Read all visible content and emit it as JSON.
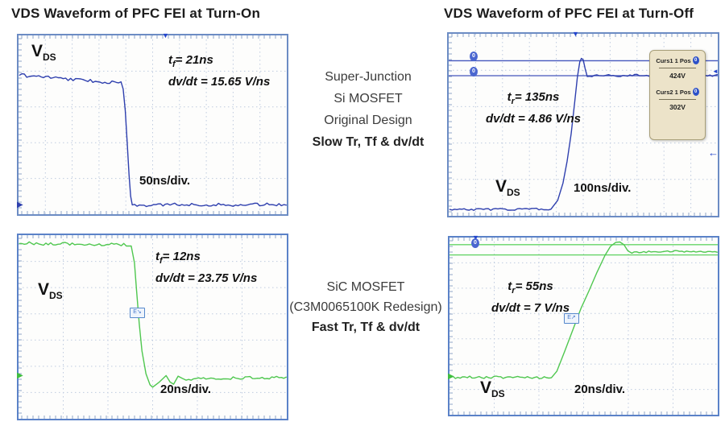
{
  "titles": {
    "left": "VDS Waveform of PFC FEI at Turn-On",
    "right": "VDS Waveform of PFC FEI at Turn-Off"
  },
  "middle_labels": {
    "top": {
      "lines": [
        "Super-Junction",
        "Si MOSFET",
        "Original Design"
      ],
      "bold_line": "Slow Tr, Tf & dv/dt"
    },
    "bottom": {
      "lines": [
        "SiC MOSFET",
        "(C3M0065100K Redesign)"
      ],
      "bold_line": "Fast Tr, Tf & dv/dt"
    }
  },
  "icons": {
    "trigger": "▼",
    "zero": "0",
    "edge_arrow": "▶",
    "arrow_left": "←",
    "arrow_small": "◄"
  },
  "colors": {
    "blue_trace": "#2e3fae",
    "green_trace": "#4fc74f",
    "blue_cursor": "#4456bd",
    "green_cursor": "#66d467",
    "grid": "#bfcbdf",
    "scope_border": "#6c8cc4",
    "panel_bg": "#ece3c9"
  },
  "chart_data": [
    {
      "name": "si-mosfet-turn-on",
      "type": "line",
      "device": "Super-Junction Si MOSFET (Original Design)",
      "edge": "turn-on",
      "vds": {
        "v": "V",
        "sub": "DS"
      },
      "annotation": {
        "t": "t",
        "t_sub": "f",
        "t_rest": "= 21ns",
        "dvdt": "dv/dt = 15.65 V/ns"
      },
      "measurements": {
        "t_f_ns": 21,
        "dvdt_V_per_ns": 15.65
      },
      "timebase": "50ns/div.",
      "grid": {
        "cols": 10,
        "rows": 5
      },
      "cursor_lines": [],
      "trace": {
        "color": "#2e3fae",
        "segments": [
          {
            "noisy": true,
            "amp": 0.009,
            "points": [
              [
                0.004,
                0.222
              ],
              [
                0.12,
                0.235
              ],
              [
                0.25,
                0.252
              ],
              [
                0.34,
                0.262
              ],
              [
                0.382,
                0.268
              ]
            ]
          },
          {
            "noisy": false,
            "points": [
              [
                0.382,
                0.268
              ],
              [
                0.39,
                0.3
              ],
              [
                0.398,
                0.42
              ],
              [
                0.405,
                0.6
              ],
              [
                0.412,
                0.78
              ],
              [
                0.418,
                0.9
              ],
              [
                0.424,
                0.948
              ]
            ]
          },
          {
            "noisy": true,
            "amp": 0.008,
            "points": [
              [
                0.424,
                0.952
              ],
              [
                0.6,
                0.945
              ],
              [
                0.8,
                0.948
              ],
              [
                0.998,
                0.944
              ]
            ]
          }
        ]
      }
    },
    {
      "name": "si-mosfet-turn-off",
      "type": "line",
      "device": "Super-Junction Si MOSFET (Original Design)",
      "edge": "turn-off",
      "vds": {
        "v": "V",
        "sub": "DS"
      },
      "annotation": {
        "t": "t",
        "t_sub": "r",
        "t_rest": "= 135ns",
        "dvdt": "dv/dt = 4.86 V/ns"
      },
      "measurements": {
        "t_r_ns": 135,
        "dvdt_V_per_ns": 4.86
      },
      "timebase": "100ns/div.",
      "grid": {
        "cols": 10,
        "rows": 5
      },
      "cursor_lines": [
        {
          "y": 0.148,
          "color": "#4456bd"
        },
        {
          "y": 0.23,
          "color": "#4456bd"
        }
      ],
      "panel": {
        "rows": [
          {
            "label": "Curs1 1 Pos",
            "value": "424V"
          },
          {
            "label": "Curs2 1 Pos",
            "value": "302V"
          }
        ]
      },
      "trace": {
        "color": "#2e3fae",
        "segments": [
          {
            "noisy": true,
            "amp": 0.006,
            "points": [
              [
                0.004,
                0.965
              ],
              [
                0.38,
                0.963
              ]
            ]
          },
          {
            "noisy": false,
            "points": [
              [
                0.38,
                0.963
              ],
              [
                0.405,
                0.915
              ],
              [
                0.425,
                0.82
              ],
              [
                0.44,
                0.7
              ],
              [
                0.455,
                0.55
              ],
              [
                0.468,
                0.38
              ],
              [
                0.478,
                0.24
              ],
              [
                0.487,
                0.155
              ],
              [
                0.493,
                0.135
              ],
              [
                0.5,
                0.143
              ],
              [
                0.507,
                0.19
              ],
              [
                0.515,
                0.235
              ]
            ]
          },
          {
            "noisy": true,
            "amp": 0.006,
            "points": [
              [
                0.515,
                0.232
              ],
              [
                0.7,
                0.228
              ],
              [
                0.998,
                0.228
              ]
            ]
          }
        ]
      }
    },
    {
      "name": "sic-mosfet-turn-on",
      "type": "line",
      "device": "SiC MOSFET (C3M0065100K Redesign)",
      "edge": "turn-on",
      "vds": {
        "v": "V",
        "sub": "DS"
      },
      "annotation": {
        "t": "t",
        "t_sub": "f",
        "t_rest": "= 12ns",
        "dvdt": "dv/dt = 23.75 V/ns"
      },
      "measurements": {
        "t_f_ns": 12,
        "dvdt_V_per_ns": 23.75
      },
      "timebase": "20ns/div.",
      "badge": "E↘",
      "grid": {
        "cols": 6,
        "rows": 7
      },
      "cursor_lines": [],
      "trace": {
        "color": "#4fc74f",
        "segments": [
          {
            "noisy": true,
            "amp": 0.009,
            "points": [
              [
                0.004,
                0.045
              ],
              [
                0.2,
                0.048
              ],
              [
                0.42,
                0.052
              ]
            ]
          },
          {
            "noisy": false,
            "points": [
              [
                0.42,
                0.052
              ],
              [
                0.432,
                0.15
              ],
              [
                0.44,
                0.3
              ],
              [
                0.45,
                0.48
              ],
              [
                0.46,
                0.63
              ],
              [
                0.475,
                0.755
              ],
              [
                0.49,
                0.815
              ],
              [
                0.5,
                0.828
              ],
              [
                0.525,
                0.8
              ],
              [
                0.55,
                0.765
              ],
              [
                0.565,
                0.8
              ],
              [
                0.578,
                0.812
              ],
              [
                0.595,
                0.768
              ],
              [
                0.61,
                0.78
              ],
              [
                0.625,
                0.79
              ]
            ]
          },
          {
            "noisy": true,
            "amp": 0.007,
            "points": [
              [
                0.625,
                0.785
              ],
              [
                0.8,
                0.778
              ],
              [
                0.998,
                0.775
              ]
            ]
          }
        ]
      }
    },
    {
      "name": "sic-mosfet-turn-off",
      "type": "line",
      "device": "SiC MOSFET (C3M0065100K Redesign)",
      "edge": "turn-off",
      "vds": {
        "v": "V",
        "sub": "DS"
      },
      "annotation": {
        "t": "t",
        "t_sub": "r",
        "t_rest": "= 55ns",
        "dvdt": "dv/dt = 7 V/ns"
      },
      "measurements": {
        "t_r_ns": 55,
        "dvdt_V_per_ns": 7
      },
      "timebase": "20ns/div.",
      "badge": "E↗",
      "grid": {
        "cols": 6,
        "rows": 7
      },
      "cursor_lines": [
        {
          "y": 0.04,
          "color": "#66d467"
        },
        {
          "y": 0.098,
          "color": "#66d467"
        }
      ],
      "trace": {
        "color": "#4fc74f",
        "segments": [
          {
            "noisy": true,
            "amp": 0.007,
            "points": [
              [
                0.004,
                0.79
              ],
              [
                0.2,
                0.788
              ],
              [
                0.38,
                0.79
              ]
            ]
          },
          {
            "noisy": false,
            "points": [
              [
                0.38,
                0.79
              ],
              [
                0.4,
                0.755
              ],
              [
                0.43,
                0.64
              ],
              [
                0.46,
                0.52
              ],
              [
                0.49,
                0.4
              ],
              [
                0.52,
                0.3
              ],
              [
                0.55,
                0.195
              ],
              [
                0.58,
                0.1
              ],
              [
                0.6,
                0.05
              ],
              [
                0.62,
                0.027
              ],
              [
                0.635,
                0.025
              ],
              [
                0.65,
                0.04
              ],
              [
                0.665,
                0.075
              ],
              [
                0.68,
                0.088
              ]
            ]
          },
          {
            "noisy": true,
            "amp": 0.005,
            "points": [
              [
                0.68,
                0.082
              ],
              [
                0.84,
                0.078
              ],
              [
                0.998,
                0.08
              ]
            ]
          }
        ]
      }
    }
  ]
}
